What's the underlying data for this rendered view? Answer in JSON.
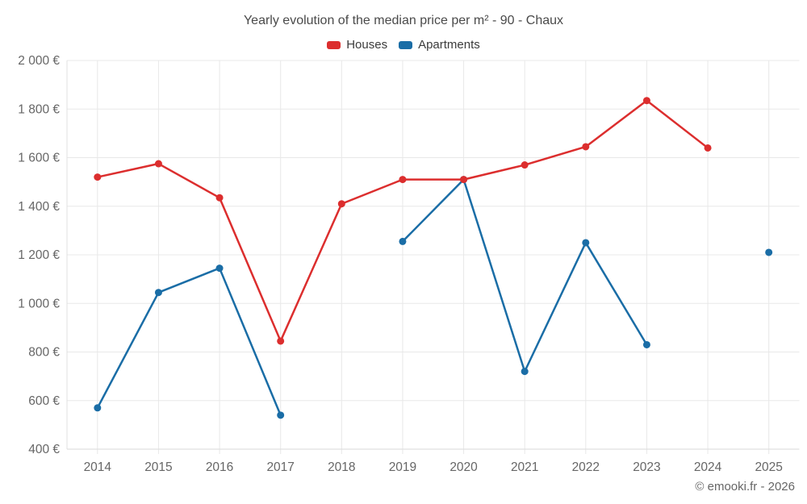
{
  "title": "Yearly evolution of the median price per m² - 90 - Chaux",
  "footer": "© emooki.fr - 2026",
  "legend": {
    "items": [
      {
        "label": "Houses",
        "color": "#dc2e2e"
      },
      {
        "label": "Apartments",
        "color": "#1a6da6"
      }
    ]
  },
  "chart_data": {
    "type": "line",
    "title": "Yearly evolution of the median price per m² - 90 - Chaux",
    "categories": [
      "2014",
      "2015",
      "2016",
      "2017",
      "2018",
      "2019",
      "2020",
      "2021",
      "2022",
      "2023",
      "2024",
      "2025"
    ],
    "series": [
      {
        "name": "Houses",
        "color": "#dc2e2e",
        "values": [
          1520,
          1575,
          1435,
          845,
          1410,
          1510,
          1510,
          1570,
          1645,
          1835,
          1640,
          null
        ]
      },
      {
        "name": "Apartments",
        "color": "#1a6da6",
        "values": [
          570,
          1045,
          1145,
          540,
          null,
          1255,
          1510,
          720,
          1250,
          830,
          null,
          1210
        ]
      }
    ],
    "ylim": [
      400,
      2000
    ],
    "ytick_step": 200,
    "yticks": [
      {
        "value": 400,
        "label": "400 €"
      },
      {
        "value": 600,
        "label": "600 €"
      },
      {
        "value": 800,
        "label": "800 €"
      },
      {
        "value": 1000,
        "label": "1 000 €"
      },
      {
        "value": 1200,
        "label": "1 200 €"
      },
      {
        "value": 1400,
        "label": "1 400 €"
      },
      {
        "value": 1600,
        "label": "1 600 €"
      },
      {
        "value": 1800,
        "label": "1 800 €"
      },
      {
        "value": 2000,
        "label": "2 000 €"
      }
    ],
    "grid": true,
    "legend_position": "top",
    "xlabel": "",
    "ylabel": ""
  }
}
